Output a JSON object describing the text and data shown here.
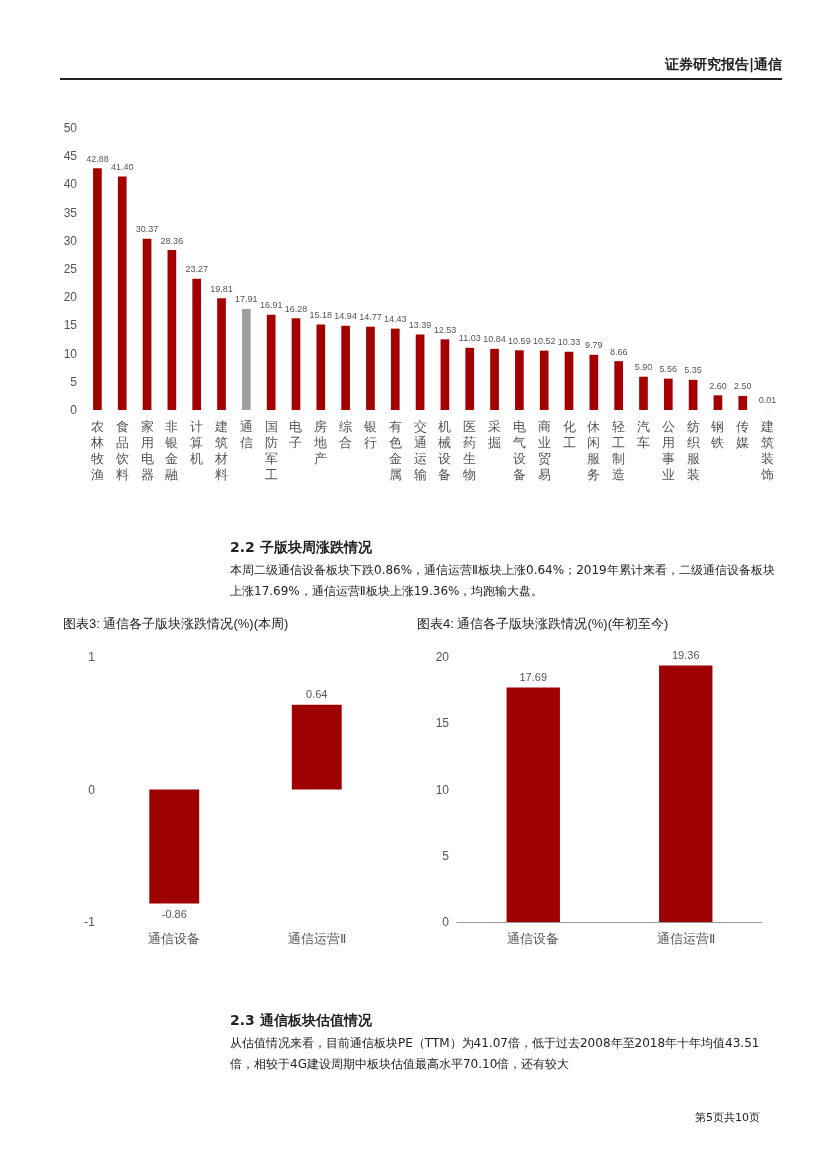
{
  "chart_data": [
    {
      "type": "bar",
      "annotations": [
        "证券研究报告|通信"
      ],
      "categories": [
        "农林牧渔",
        "食品饮料",
        "家用电器",
        "非银金融",
        "计算机",
        "建筑材料",
        "通信",
        "国防军工",
        "电子",
        "房地产",
        "综合",
        "银行",
        "有色金属",
        "交通运输",
        "机械设备",
        "医药生物",
        "采掘",
        "电气设备",
        "商业贸易",
        "化工",
        "休闲服务",
        "轻工制造",
        "汽车",
        "公用事业",
        "纺织服装",
        "钢铁",
        "传媒",
        "建筑装饰"
      ],
      "values": [
        42.88,
        41.4,
        30.37,
        28.36,
        23.27,
        19.81,
        17.91,
        16.91,
        16.28,
        15.18,
        14.94,
        14.77,
        14.43,
        13.39,
        12.53,
        11.03,
        10.84,
        10.59,
        10.52,
        10.33,
        9.79,
        8.66,
        5.9,
        5.56,
        5.35,
        2.6,
        2.5,
        0.01
      ],
      "value_labels": [
        "42.88",
        "41.40",
        "30.37",
        "28.36",
        "23.27",
        "19.81",
        "17.91",
        "16.91",
        "16.28",
        "15.18",
        "14.94",
        "14.77",
        "14.43",
        "13.39",
        "12.53",
        "11.03",
        "10.84",
        "10.59",
        "10.52",
        "10.33",
        "9.79",
        "8.66",
        "5.90",
        "5.56",
        "5.35",
        "2.60",
        "2.50",
        "0.01"
      ],
      "colors": [
        "#a50000",
        "#a50000",
        "#a50000",
        "#a50000",
        "#a50000",
        "#a50000",
        "#a0a0a0",
        "#a50000",
        "#a50000",
        "#a50000",
        "#a50000",
        "#a50000",
        "#a50000",
        "#a50000",
        "#a50000",
        "#a50000",
        "#a50000",
        "#a50000",
        "#a50000",
        "#a50000",
        "#a50000",
        "#a50000",
        "#a50000",
        "#a50000",
        "#a50000",
        "#a50000",
        "#a50000",
        "#a50000"
      ],
      "ylim": [
        0,
        50
      ],
      "yticks": [
        0,
        5,
        10,
        15,
        20,
        25,
        30,
        35,
        40,
        45,
        50
      ],
      "grid": false
    },
    {
      "type": "bar",
      "title": "图表3: 通信各子版块涨跌情况(%)(本周)",
      "annotations": [
        "2.2 子版块周涨跌情况",
        "本周二级通信设备板块下跌0.86%，通信运营Ⅱ板块上涨0.64%；2019年累计来看，二级通信设备板块上涨17.69%，通信运营Ⅱ板块上涨19.36%，均跑输大盘。"
      ],
      "categories": [
        "通信设备",
        "通信运营Ⅱ"
      ],
      "values": [
        -0.86,
        0.64
      ],
      "color": "#9e0000",
      "ylim": [
        -1,
        1
      ],
      "yticks": [
        -1,
        0,
        1
      ],
      "grid": false,
      "data_labels": true
    },
    {
      "type": "bar",
      "title": "图表4: 通信各子版块涨跌情况(%)(年初至今)",
      "annotations": [
        "2.3 通信板块估值情况",
        "从估值情况来看，目前通信板块PE（TTM）为41.07倍，低于过去2008年至2018年十年均值43.51倍，相较于4G建设周期中板块估值最高水平70.10倍，还有较大",
        "第5页共10页"
      ],
      "categories": [
        "通信设备",
        "通信运营Ⅱ"
      ],
      "values": [
        17.69,
        19.36
      ],
      "color": "#9e0000",
      "ylim": [
        0,
        20
      ],
      "yticks": [
        0,
        5,
        10,
        15,
        20
      ],
      "grid": false,
      "data_labels": true
    }
  ]
}
